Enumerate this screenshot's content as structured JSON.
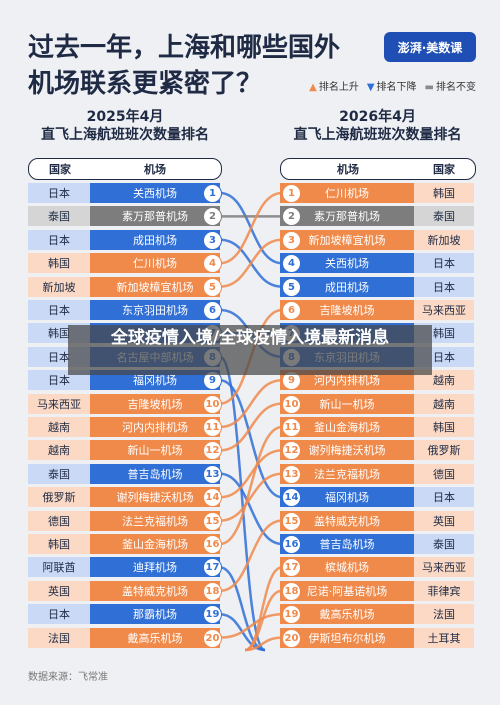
{
  "header": {
    "title_line1": "过去一年，上海和哪些国外",
    "title_line2": "机场联系更紧密了？",
    "logo": "澎湃·美数课",
    "legend": [
      {
        "label": "排名上升",
        "color": "#f08a4b",
        "symbol": "▲"
      },
      {
        "label": "排名下降",
        "color": "#2f6fd6",
        "symbol": "▼"
      },
      {
        "label": "排名不变",
        "color": "#8a8a8a",
        "symbol": "▬"
      }
    ]
  },
  "left_title": {
    "year": "2025年4月",
    "subtitle": "直飞上海航班班次数量排名"
  },
  "right_title": {
    "year": "2026年4月",
    "subtitle": "直飞上海航班班次数量排名"
  },
  "left_header": {
    "country": "国家",
    "airport": "机场"
  },
  "right_header": {
    "airport": "机场",
    "country": "国家"
  },
  "colors": {
    "up": "#f08a4b",
    "down": "#2f6fd6",
    "same": "#7d7d7d",
    "up_light": "#fbd9c4",
    "down_light": "#c9d9f6",
    "same_light": "#d5d5d5"
  },
  "chart_data": {
    "type": "table",
    "title": "过去一年，上海和哪些国外机场联系更紧密了？",
    "left_ranking_2025": [
      {
        "rank": 1,
        "country": "日本",
        "airport": "关西机场",
        "trend": "down"
      },
      {
        "rank": 2,
        "country": "泰国",
        "airport": "素万那普机场",
        "trend": "same"
      },
      {
        "rank": 3,
        "country": "日本",
        "airport": "成田机场",
        "trend": "down"
      },
      {
        "rank": 4,
        "country": "韩国",
        "airport": "仁川机场",
        "trend": "up"
      },
      {
        "rank": 5,
        "country": "新加坡",
        "airport": "新加坡樟宜机场",
        "trend": "up"
      },
      {
        "rank": 6,
        "country": "日本",
        "airport": "东京羽田机场",
        "trend": "down"
      },
      {
        "rank": 7,
        "country": "韩国",
        "airport": "",
        "trend": "down"
      },
      {
        "rank": 8,
        "country": "日本",
        "airport": "名古屋中部机场",
        "trend": "down"
      },
      {
        "rank": 9,
        "country": "日本",
        "airport": "福冈机场",
        "trend": "down"
      },
      {
        "rank": 10,
        "country": "马来西亚",
        "airport": "吉隆坡机场",
        "trend": "up"
      },
      {
        "rank": 11,
        "country": "越南",
        "airport": "河内内排机场",
        "trend": "up"
      },
      {
        "rank": 12,
        "country": "越南",
        "airport": "新山一机场",
        "trend": "up"
      },
      {
        "rank": 13,
        "country": "泰国",
        "airport": "普吉岛机场",
        "trend": "down"
      },
      {
        "rank": 14,
        "country": "俄罗斯",
        "airport": "谢列梅捷沃机场",
        "trend": "up"
      },
      {
        "rank": 15,
        "country": "德国",
        "airport": "法兰克福机场",
        "trend": "up"
      },
      {
        "rank": 16,
        "country": "韩国",
        "airport": "釜山金海机场",
        "trend": "up"
      },
      {
        "rank": 17,
        "country": "阿联酋",
        "airport": "迪拜机场",
        "trend": "down"
      },
      {
        "rank": 18,
        "country": "英国",
        "airport": "盖特威克机场",
        "trend": "up"
      },
      {
        "rank": 19,
        "country": "日本",
        "airport": "那霸机场",
        "trend": "down"
      },
      {
        "rank": 20,
        "country": "法国",
        "airport": "戴高乐机场",
        "trend": "up"
      }
    ],
    "right_ranking_2026": [
      {
        "rank": 1,
        "airport": "仁川机场",
        "country": "韩国",
        "trend": "up"
      },
      {
        "rank": 2,
        "airport": "素万那普机场",
        "country": "泰国",
        "trend": "same"
      },
      {
        "rank": 3,
        "airport": "新加坡樟宜机场",
        "country": "新加坡",
        "trend": "up"
      },
      {
        "rank": 4,
        "airport": "关西机场",
        "country": "日本",
        "trend": "down"
      },
      {
        "rank": 5,
        "airport": "成田机场",
        "country": "日本",
        "trend": "down"
      },
      {
        "rank": 6,
        "airport": "吉隆坡机场",
        "country": "马来西亚",
        "trend": "up"
      },
      {
        "rank": 7,
        "airport": "",
        "country": "韩国",
        "trend": "down"
      },
      {
        "rank": 8,
        "airport": "东京羽田机场",
        "country": "日本",
        "trend": "down"
      },
      {
        "rank": 9,
        "airport": "河内内排机场",
        "country": "越南",
        "trend": "up"
      },
      {
        "rank": 10,
        "airport": "新山一机场",
        "country": "越南",
        "trend": "up"
      },
      {
        "rank": 11,
        "airport": "釜山金海机场",
        "country": "韩国",
        "trend": "up"
      },
      {
        "rank": 12,
        "airport": "谢列梅捷沃机场",
        "country": "俄罗斯",
        "trend": "up"
      },
      {
        "rank": 13,
        "airport": "法兰克福机场",
        "country": "德国",
        "trend": "up"
      },
      {
        "rank": 14,
        "airport": "福冈机场",
        "country": "日本",
        "trend": "down"
      },
      {
        "rank": 15,
        "airport": "盖特威克机场",
        "country": "英国",
        "trend": "up"
      },
      {
        "rank": 16,
        "airport": "普吉岛机场",
        "country": "泰国",
        "trend": "down"
      },
      {
        "rank": 17,
        "airport": "槟城机场",
        "country": "马来西亚",
        "trend": "up"
      },
      {
        "rank": 18,
        "airport": "尼诺·阿基诺机场",
        "country": "菲律宾",
        "trend": "up"
      },
      {
        "rank": 19,
        "airport": "戴高乐机场",
        "country": "法国",
        "trend": "up"
      },
      {
        "rank": 20,
        "airport": "伊斯坦布尔机场",
        "country": "土耳其",
        "trend": "up"
      }
    ]
  },
  "overlay_text": "全球疫情入境/全球疫情入境最新消息",
  "source": "数据来源：飞常准"
}
